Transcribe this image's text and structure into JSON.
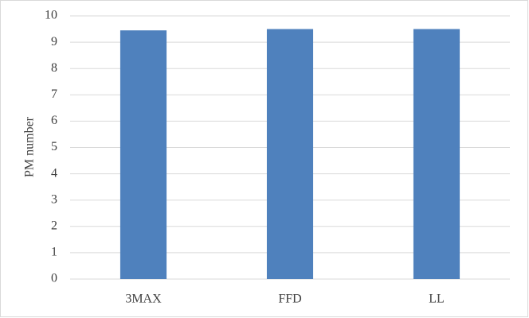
{
  "chart_data": {
    "type": "bar",
    "y_label": "PM number",
    "categories": [
      "3MAX",
      "FFD",
      "LL"
    ],
    "values": [
      9.45,
      9.5,
      9.5
    ],
    "color": "#4f81bd",
    "ylim": [
      0,
      10
    ],
    "yticks": [
      0,
      1,
      2,
      3,
      4,
      5,
      6,
      7,
      8,
      9,
      10
    ],
    "grid": true
  }
}
